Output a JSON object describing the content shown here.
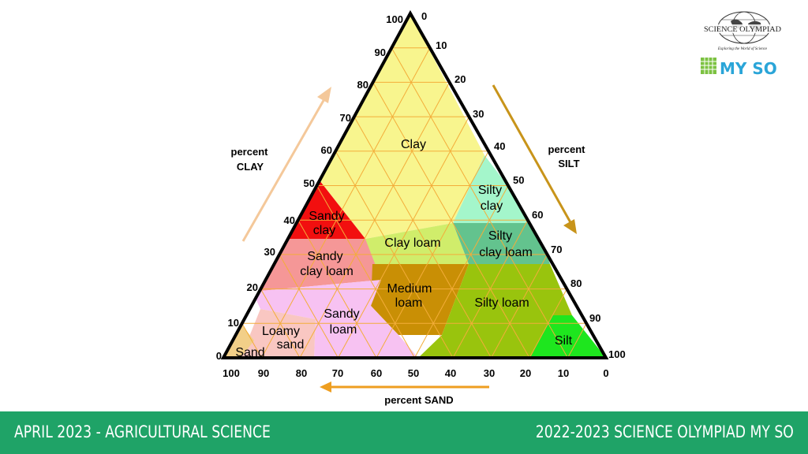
{
  "chart_data": {
    "type": "ternary",
    "axes": {
      "clay": {
        "title_line1": "percent",
        "title_line2": "CLAY",
        "ticks": [
          "100",
          "90",
          "80",
          "70",
          "60",
          "50",
          "40",
          "30",
          "20",
          "10",
          "0"
        ]
      },
      "silt": {
        "title_line1": "percent",
        "title_line2": "SILT",
        "ticks": [
          "0",
          "10",
          "20",
          "30",
          "40",
          "50",
          "60",
          "70",
          "80",
          "90",
          "100"
        ]
      },
      "sand": {
        "title": "percent SAND",
        "ticks": [
          "100",
          "90",
          "80",
          "70",
          "60",
          "50",
          "40",
          "30",
          "20",
          "10",
          "0"
        ]
      }
    },
    "regions": [
      {
        "name": "Clay",
        "lines": [
          "Clay"
        ],
        "color": "#f8f58e"
      },
      {
        "name": "Sandy clay",
        "lines": [
          "Sandy",
          "clay"
        ],
        "color": "#f20f0f"
      },
      {
        "name": "Silty clay",
        "lines": [
          "Silty",
          "clay"
        ],
        "color": "#a4f6cb"
      },
      {
        "name": "Clay loam",
        "lines": [
          "Clay loam"
        ],
        "color": "#d0ed6b"
      },
      {
        "name": "Silty clay loam",
        "lines": [
          "Silty",
          "clay loam"
        ],
        "color": "#63c38e"
      },
      {
        "name": "Sandy clay loam",
        "lines": [
          "Sandy",
          "clay loam"
        ],
        "color": "#f59797"
      },
      {
        "name": "Medium loam",
        "lines": [
          "Medium",
          "loam"
        ],
        "color": "#c98f05"
      },
      {
        "name": "Silty loam",
        "lines": [
          "Silty loam"
        ],
        "color": "#99c40d"
      },
      {
        "name": "Sandy loam",
        "lines": [
          "Sandy",
          "loam"
        ],
        "color": "#f7c2f2"
      },
      {
        "name": "Loamy sand",
        "lines": [
          "Loamy",
          "sand"
        ],
        "color": "#f9c7c2"
      },
      {
        "name": "Sand",
        "lines": [
          "Sand"
        ],
        "color": "#f2cf88"
      },
      {
        "name": "Silt",
        "lines": [
          "Silt"
        ],
        "color": "#1ee61e"
      }
    ]
  },
  "logos": {
    "science_olympiad": "SCIENCE OLYMPIAD",
    "tagline": "Exploring the World of Science",
    "myso": "MY SO"
  },
  "footer": {
    "left": "APRIL 2023 - AGRICULTURAL SCIENCE",
    "right": "2022-2023 SCIENCE OLYMPIAD MY SO"
  },
  "colors": {
    "footer_bg": "#1fa367",
    "grid_line": "#f3ad3a",
    "arrow_clay": "#f4c89a",
    "arrow_silt": "#c8941a",
    "arrow_sand": "#ee9e20"
  }
}
